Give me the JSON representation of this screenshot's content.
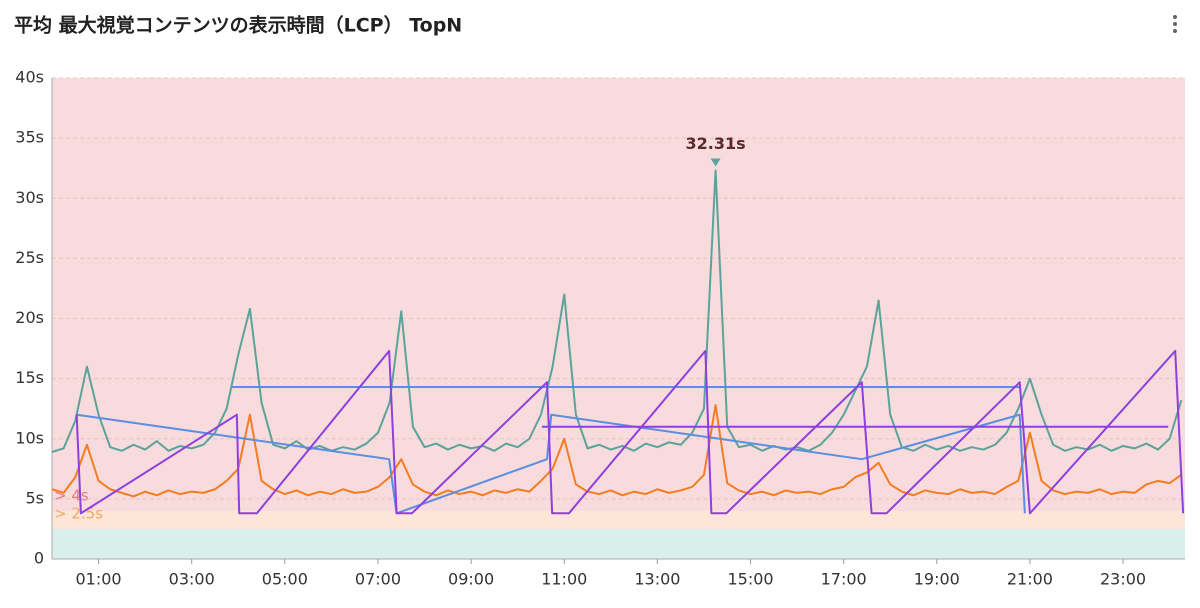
{
  "chart_data": {
    "type": "line",
    "title": "平均 最大視覚コンテンツの表示時間（LCP） TopN",
    "xlim": [
      0,
      24.33
    ],
    "ylim": [
      0,
      40
    ],
    "xticks": [
      {
        "value": 1,
        "label": "01:00"
      },
      {
        "value": 3,
        "label": "03:00"
      },
      {
        "value": 5,
        "label": "05:00"
      },
      {
        "value": 7,
        "label": "07:00"
      },
      {
        "value": 9,
        "label": "09:00"
      },
      {
        "value": 11,
        "label": "11:00"
      },
      {
        "value": 13,
        "label": "13:00"
      },
      {
        "value": 15,
        "label": "15:00"
      },
      {
        "value": 17,
        "label": "17:00"
      },
      {
        "value": 19,
        "label": "19:00"
      },
      {
        "value": 21,
        "label": "21:00"
      },
      {
        "value": 23,
        "label": "23:00"
      }
    ],
    "yticks": [
      0,
      {
        "value": 5,
        "label": "5s"
      },
      {
        "value": 10,
        "label": "10s"
      },
      {
        "value": 15,
        "label": "15s"
      },
      {
        "value": 20,
        "label": "20s"
      },
      {
        "value": 25,
        "label": "25s"
      },
      {
        "value": 30,
        "label": "30s"
      },
      {
        "value": 35,
        "label": "35s"
      },
      {
        "value": 40,
        "label": "40s"
      }
    ],
    "grid": true,
    "base_band_color": "#d9efec",
    "thresholds": [
      {
        "value": 4,
        "label": "> 4s",
        "color": "#e07b84",
        "band_color": "#f8dbdd"
      },
      {
        "value": 2.5,
        "label": "> 2.5s",
        "color": "#f3a865",
        "band_color": "#fde6d6"
      }
    ],
    "annotation": {
      "label": "32.31s",
      "value": 32.31,
      "x": 14.25,
      "color": "#5ba39a"
    },
    "x": [
      0,
      0.25,
      0.5,
      0.75,
      1,
      1.25,
      1.5,
      1.75,
      2,
      2.25,
      2.5,
      2.75,
      3,
      3.25,
      3.5,
      3.75,
      4,
      4.25,
      4.5,
      4.75,
      5,
      5.25,
      5.5,
      5.75,
      6,
      6.25,
      6.5,
      6.75,
      7,
      7.25,
      7.5,
      7.75,
      8,
      8.25,
      8.5,
      8.75,
      9,
      9.25,
      9.5,
      9.75,
      10,
      10.25,
      10.5,
      10.75,
      11,
      11.25,
      11.5,
      11.75,
      12,
      12.25,
      12.5,
      12.75,
      13,
      13.25,
      13.5,
      13.75,
      14,
      14.25,
      14.5,
      14.75,
      15,
      15.25,
      15.5,
      15.75,
      16,
      16.25,
      16.5,
      16.75,
      17,
      17.25,
      17.5,
      17.75,
      18,
      18.25,
      18.5,
      18.75,
      19,
      19.25,
      19.5,
      19.75,
      20,
      20.25,
      20.5,
      20.75,
      21,
      21.25,
      21.5,
      21.75,
      22,
      22.25,
      22.5,
      22.75,
      23,
      23.25,
      23.5,
      23.75,
      24,
      24.25
    ],
    "series": [
      {
        "color": "#5ba39a",
        "values": [
          8.9,
          9.2,
          11.5,
          16,
          12,
          9.3,
          9,
          9.5,
          9.1,
          9.8,
          9,
          9.4,
          9.2,
          9.5,
          10.5,
          12.5,
          17,
          20.8,
          13,
          9.5,
          9.2,
          9.8,
          9.1,
          9.4,
          9,
          9.3,
          9.1,
          9.6,
          10.5,
          13,
          20.6,
          11,
          9.3,
          9.6,
          9.1,
          9.5,
          9.2,
          9.4,
          9,
          9.6,
          9.3,
          10,
          12,
          16,
          22,
          12,
          9.2,
          9.5,
          9.1,
          9.4,
          9,
          9.6,
          9.3,
          9.7,
          9.5,
          10.5,
          12.5,
          32.31,
          11,
          9.3,
          9.5,
          9,
          9.4,
          9.1,
          9.3,
          9,
          9.5,
          10.5,
          12,
          14,
          16,
          21.5,
          12,
          9.3,
          9,
          9.5,
          9.1,
          9.4,
          9,
          9.3,
          9.1,
          9.5,
          10.5,
          12.5,
          15,
          12,
          9.5,
          9,
          9.3,
          9.1,
          9.5,
          9,
          9.4,
          9.2,
          9.6,
          9.1,
          10,
          13.2
        ]
      },
      {
        "color": "#f57c20",
        "values": [
          5.8,
          5.5,
          6.8,
          9.5,
          6.5,
          5.8,
          5.5,
          5.2,
          5.6,
          5.3,
          5.7,
          5.4,
          5.6,
          5.5,
          5.8,
          6.5,
          7.5,
          12,
          6.5,
          5.8,
          5.4,
          5.7,
          5.3,
          5.6,
          5.4,
          5.8,
          5.5,
          5.6,
          6,
          6.8,
          8.3,
          6.2,
          5.6,
          5.3,
          5.7,
          5.4,
          5.6,
          5.3,
          5.7,
          5.5,
          5.8,
          5.6,
          6.5,
          7.5,
          10,
          6.2,
          5.6,
          5.4,
          5.7,
          5.3,
          5.6,
          5.4,
          5.8,
          5.5,
          5.7,
          6,
          7,
          12.8,
          6.3,
          5.7,
          5.4,
          5.6,
          5.3,
          5.7,
          5.5,
          5.6,
          5.4,
          5.8,
          6,
          6.8,
          7.2,
          8,
          6.2,
          5.6,
          5.3,
          5.7,
          5.5,
          5.4,
          5.8,
          5.5,
          5.6,
          5.4,
          6,
          6.5,
          10.5,
          6.5,
          5.7,
          5.4,
          5.6,
          5.5,
          5.8,
          5.4,
          5.6,
          5.5,
          6.2,
          6.5,
          6.3,
          7
        ]
      },
      {
        "color": "#5b8de0",
        "x": [
          0.53,
          7.24,
          7.4,
          10.63,
          10.72,
          17.39,
          20.78,
          20.89,
          null,
          3.86,
          20.78
        ],
        "values": [
          12,
          8.3,
          3.8,
          8.3,
          12,
          8.3,
          12,
          3.8,
          null,
          14.3,
          14.3
        ]
      },
      {
        "color": "#8e3fe0",
        "x": [
          0.53,
          0.62,
          3.97,
          4.02,
          4.4,
          7.24,
          7.4,
          7.73,
          10.63,
          10.74,
          11.1,
          14.03,
          14.16,
          14.48,
          17.39,
          17.6,
          17.92,
          20.78,
          21.0,
          24.12,
          24.29,
          null,
          10.52,
          23.97
        ],
        "values": [
          12,
          3.8,
          12,
          3.8,
          3.8,
          17.3,
          3.8,
          3.8,
          14.7,
          3.8,
          3.8,
          17.3,
          3.8,
          3.8,
          14.7,
          3.8,
          3.8,
          14.7,
          3.8,
          17.3,
          3.8,
          null,
          11,
          11
        ]
      }
    ]
  }
}
